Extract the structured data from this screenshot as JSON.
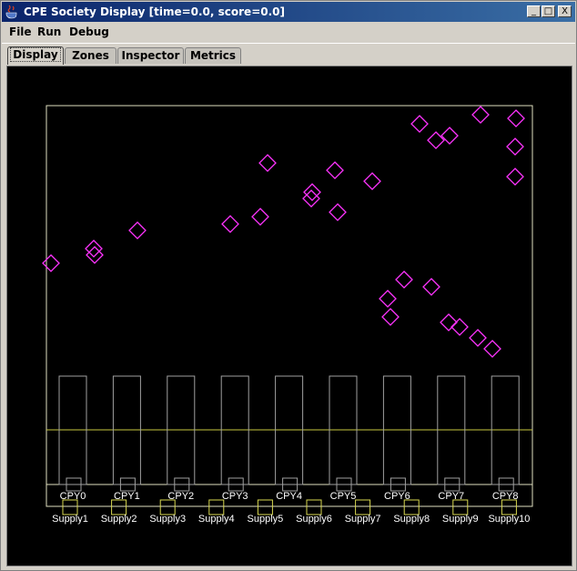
{
  "window": {
    "title": "CPE Society Display [time=0.0, score=0.0]",
    "controls": {
      "minimize": "_",
      "maximize": "□",
      "close": "X"
    }
  },
  "menu": [
    "File",
    "Run",
    "Debug"
  ],
  "tabs": [
    {
      "label": "Display",
      "active": true
    },
    {
      "label": "Zones",
      "active": false
    },
    {
      "label": "Inspector",
      "active": false
    },
    {
      "label": "Metrics",
      "active": false
    }
  ],
  "display": {
    "colors": {
      "background": "#000000",
      "border": "#e0e0c0",
      "zone_line": "#c8c840",
      "lane": "#a0a0a0",
      "unit": "#ff33ff",
      "supply": "#d8d850",
      "text": "#ffffff"
    },
    "cpy_labels": [
      "CPY0",
      "CPY1",
      "CPY2",
      "CPY3",
      "CPY4",
      "CPY5",
      "CPY6",
      "CPY7",
      "CPY8"
    ],
    "supply_labels": [
      "Supply1",
      "Supply2",
      "Supply3",
      "Supply4",
      "Supply5",
      "Supply6",
      "Supply7",
      "Supply8",
      "Supply9",
      "Supply10"
    ],
    "unit_icon": "diamond-icon"
  }
}
